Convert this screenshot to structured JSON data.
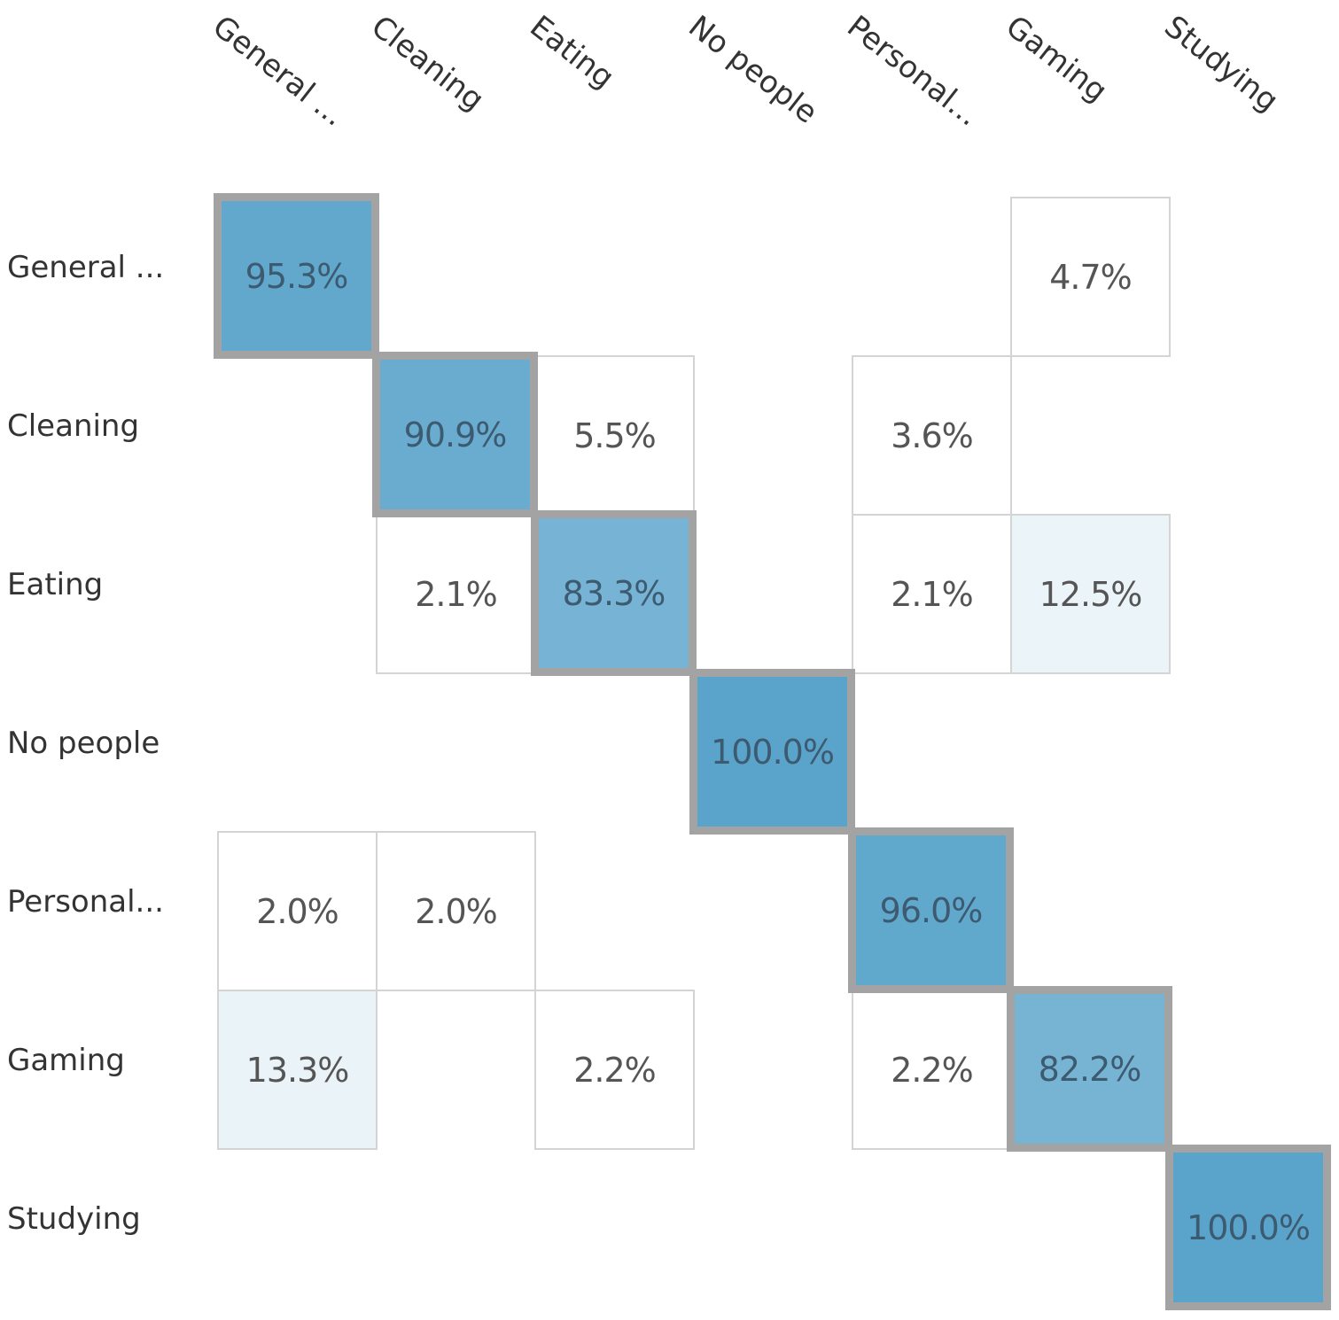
{
  "chart_data": {
    "type": "heatmap",
    "title": "",
    "row_labels": [
      "General ...",
      "Cleaning",
      "Eating",
      "No people",
      "Personal...",
      "Gaming",
      "Studying"
    ],
    "col_labels": [
      "General ...",
      "Cleaning",
      "Eating",
      "No people",
      "Personal...",
      "Gaming",
      "Studying"
    ],
    "values": [
      [
        95.3,
        null,
        null,
        null,
        null,
        4.7,
        null
      ],
      [
        null,
        90.9,
        5.5,
        null,
        3.6,
        null,
        null
      ],
      [
        null,
        2.1,
        83.3,
        null,
        2.1,
        12.5,
        null
      ],
      [
        null,
        null,
        null,
        100.0,
        null,
        null,
        null
      ],
      [
        2.0,
        2.0,
        null,
        null,
        96.0,
        null,
        null
      ],
      [
        13.3,
        null,
        2.2,
        null,
        2.2,
        82.2,
        null
      ],
      [
        null,
        null,
        null,
        null,
        null,
        null,
        100.0
      ]
    ],
    "cell_text": [
      [
        "95.3%",
        "",
        "",
        "",
        "",
        "4.7%",
        ""
      ],
      [
        "",
        "90.9%",
        "5.5%",
        "",
        "3.6%",
        "",
        ""
      ],
      [
        "",
        "2.1%",
        "83.3%",
        "",
        "2.1%",
        "12.5%",
        ""
      ],
      [
        "",
        "",
        "",
        "100.0%",
        "",
        "",
        ""
      ],
      [
        "2.0%",
        "2.0%",
        "",
        "",
        "96.0%",
        "",
        ""
      ],
      [
        "13.3%",
        "",
        "2.2%",
        "",
        "2.2%",
        "82.2%",
        ""
      ],
      [
        "",
        "",
        "",
        "",
        "",
        "",
        "100.0%"
      ]
    ],
    "value_range": [
      0,
      100
    ],
    "colors": {
      "low": "#ffffff",
      "high": "#5aa4cb",
      "diagonal_border": "#a3a3a3",
      "cell_border": "#d4d4d4"
    }
  }
}
